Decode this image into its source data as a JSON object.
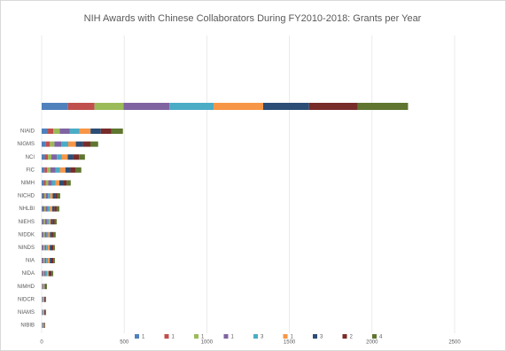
{
  "chart_data": {
    "type": "stacked-bar-horizontal",
    "title": "NIH Awards with Chinese Collaborators During FY2010-2018: Grants per Year",
    "categories": [
      null,
      "NIAID",
      "NIGMS",
      "NCI",
      "FIC",
      "NIMH",
      "NICHD",
      "NHLBI",
      "NIEHS",
      "NIDDK",
      "NINDS",
      "NIA",
      "NIDA",
      "NIMHD",
      "NIDCR",
      "NIAMS",
      "NIBIB"
    ],
    "xlim": [
      0,
      2500
    ],
    "xticks": [
      0,
      500,
      1000,
      1500,
      2000,
      2500
    ],
    "grid": true,
    "series": [
      {
        "name": "1",
        "color": "#4f81bd",
        "values": [
          160,
          35,
          25,
          19,
          17,
          13,
          8,
          8,
          7,
          6,
          6,
          6,
          5,
          2,
          2,
          2,
          2
        ]
      },
      {
        "name": "1",
        "color": "#c0504d",
        "values": [
          160,
          35,
          25,
          19,
          17,
          13,
          8,
          8,
          7,
          6,
          6,
          6,
          5,
          2,
          2,
          2,
          2
        ]
      },
      {
        "name": "1",
        "color": "#9bbb59",
        "values": [
          176,
          39,
          27,
          21,
          19,
          14,
          9,
          8,
          7,
          7,
          6,
          6,
          6,
          3,
          2,
          2,
          2
        ]
      },
      {
        "name": "1",
        "color": "#8064a2",
        "values": [
          278,
          62,
          43,
          33,
          30,
          22,
          14,
          13,
          11,
          11,
          10,
          10,
          9,
          4,
          3,
          3,
          3
        ]
      },
      {
        "name": "3",
        "color": "#4bacc6",
        "values": [
          267,
          59,
          41,
          31,
          29,
          21,
          13,
          13,
          11,
          10,
          10,
          10,
          8,
          4,
          3,
          3,
          2
        ]
      },
      {
        "name": "1",
        "color": "#f79646",
        "values": [
          300,
          66,
          46,
          35,
          32,
          24,
          15,
          14,
          12,
          11,
          11,
          11,
          9,
          4,
          4,
          4,
          3
        ]
      },
      {
        "name": "3",
        "color": "#2c4d75",
        "values": [
          278,
          62,
          43,
          33,
          30,
          22,
          14,
          13,
          11,
          11,
          10,
          10,
          9,
          4,
          3,
          3,
          3
        ]
      },
      {
        "name": "2",
        "color": "#772c2a",
        "values": [
          294,
          65,
          45,
          35,
          32,
          23,
          15,
          14,
          12,
          11,
          11,
          11,
          9,
          4,
          4,
          4,
          2
        ]
      },
      {
        "name": "4",
        "color": "#5f7530",
        "values": [
          305,
          69,
          47,
          36,
          34,
          24,
          16,
          16,
          13,
          12,
          10,
          10,
          10,
          5,
          4,
          4,
          2
        ]
      }
    ]
  }
}
